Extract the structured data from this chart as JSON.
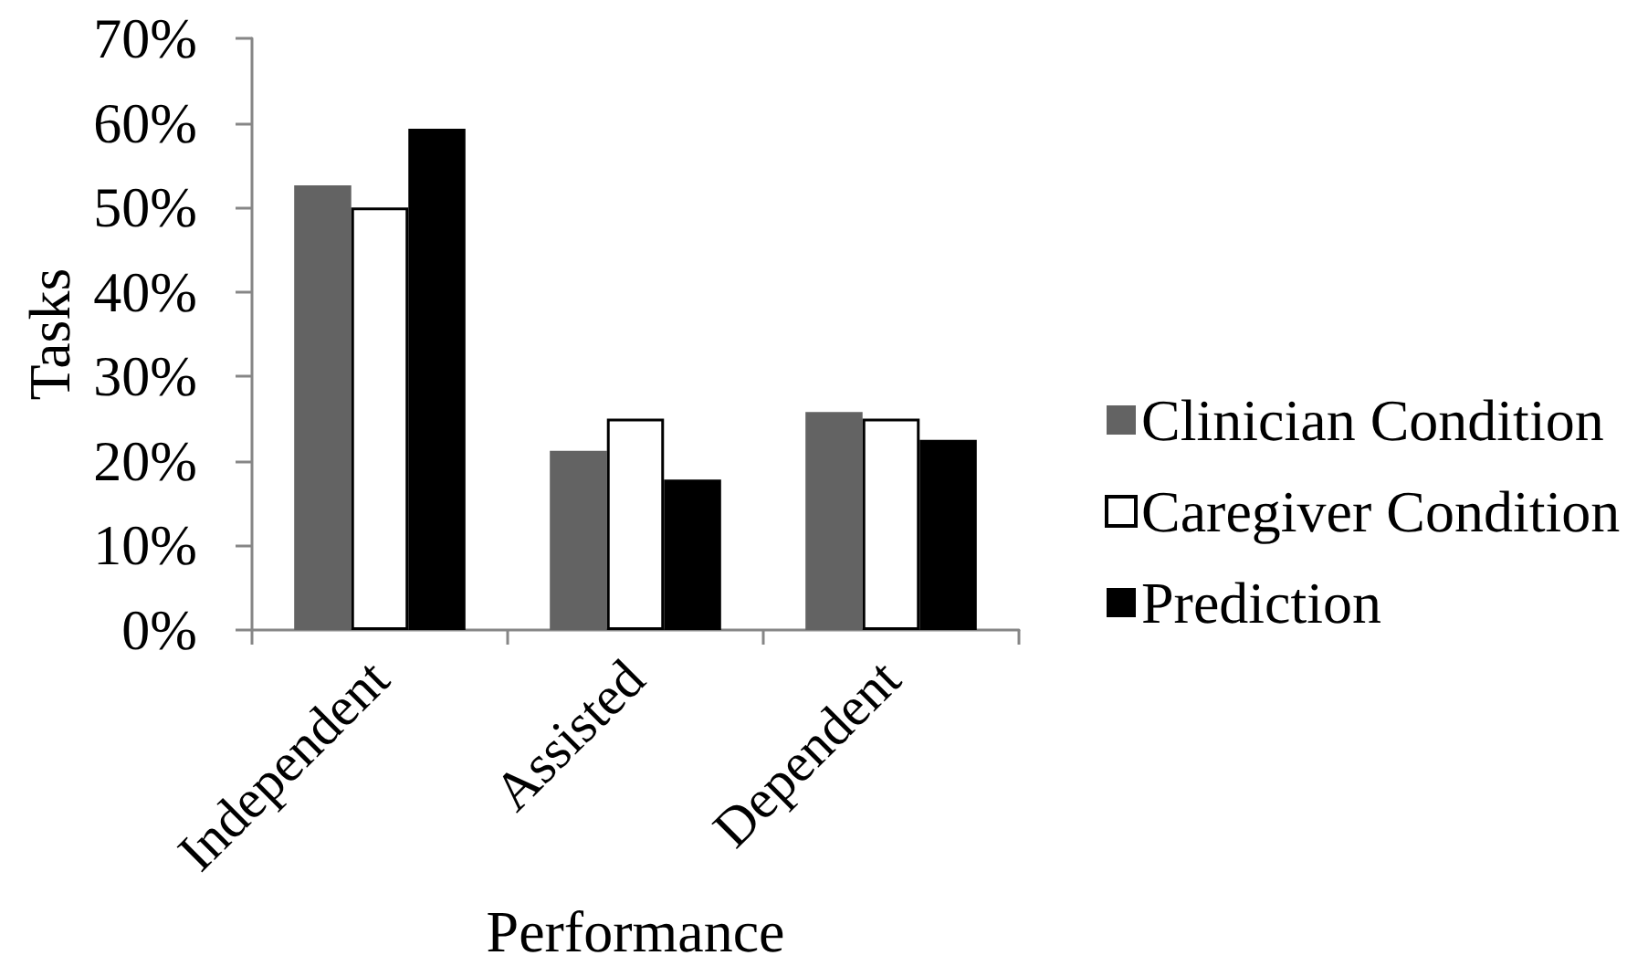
{
  "chart_data": {
    "type": "bar",
    "xlabel": "Performance",
    "ylabel": "Tasks",
    "categories": [
      "Independent",
      "Assisted",
      "Dependent"
    ],
    "series": [
      {
        "name": "Clinician Condition",
        "color": "#636363",
        "values": [
          52.6,
          21.2,
          25.8
        ]
      },
      {
        "name": "Caregiver Condition",
        "color": "#ffffff",
        "values": [
          50,
          25,
          25
        ]
      },
      {
        "name": "Prediction",
        "color": "#000000",
        "values": [
          59.3,
          17.8,
          22.5
        ]
      }
    ],
    "ylim": [
      0,
      70
    ],
    "yticks": [
      {
        "value": 0,
        "label": "0%"
      },
      {
        "value": 10,
        "label": "10%"
      },
      {
        "value": 20,
        "label": "20%"
      },
      {
        "value": 30,
        "label": "30%"
      },
      {
        "value": 40,
        "label": "40%"
      },
      {
        "value": 50,
        "label": "50%"
      },
      {
        "value": 60,
        "label": "60%"
      },
      {
        "value": 70,
        "label": "70%"
      }
    ],
    "grid": false,
    "legend": "right"
  }
}
